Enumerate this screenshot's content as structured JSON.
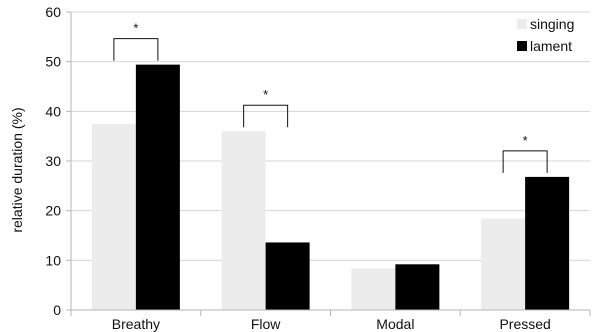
{
  "chart_data": {
    "type": "bar",
    "categories": [
      "Breathy",
      "Flow",
      "Modal",
      "Pressed"
    ],
    "series": [
      {
        "name": "singing",
        "values": [
          37.5,
          36,
          8.4,
          18.4
        ],
        "color": "#ececec"
      },
      {
        "name": "lament",
        "values": [
          49.4,
          13.6,
          9.2,
          26.8
        ],
        "color": "#000000"
      }
    ],
    "ylabel": "relative duration (%)",
    "xlabel": "",
    "ylim": [
      0,
      60
    ],
    "yticks": [
      0,
      10,
      20,
      30,
      40,
      50,
      60
    ],
    "grid": true,
    "legend": "top-right",
    "significance": [
      {
        "category": "Breathy",
        "label": "*"
      },
      {
        "category": "Flow",
        "label": "*"
      },
      {
        "category": "Pressed",
        "label": "*"
      }
    ]
  }
}
